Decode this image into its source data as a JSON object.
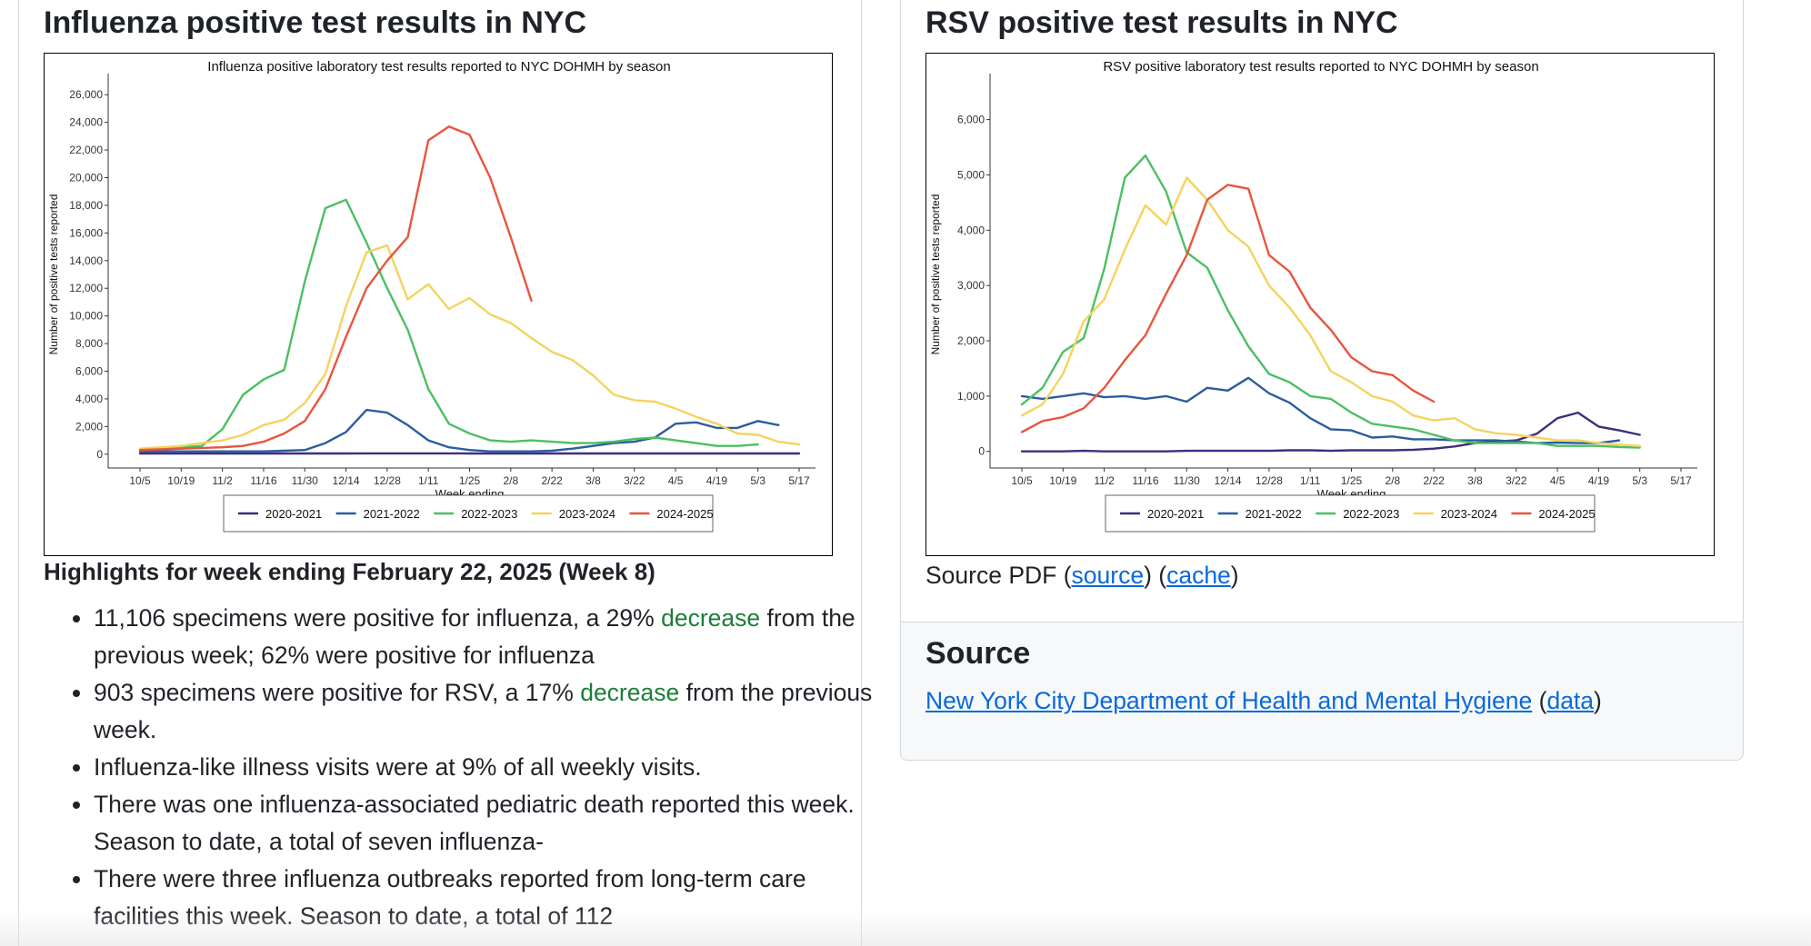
{
  "left": {
    "heading": "Influenza positive test results in NYC",
    "highlights_title": "Highlights for week ending February 22, 2025 (Week 8)",
    "bullets": [
      {
        "before": "11,106 specimens were positive for influenza, a 29% ",
        "green": "decrease",
        "after": " from the previous week; 62% were positive for influenza"
      },
      {
        "before": "903 specimens were positive for RSV, a 17% ",
        "green": "decrease",
        "after": " from the previous week."
      },
      {
        "before": "Influenza-like illness visits were at 9% of all weekly visits.",
        "green": "",
        "after": ""
      },
      {
        "before": "There was one influenza-associated pediatric death reported this week. Season to date, a total of seven influenza-",
        "green": "",
        "after": ""
      },
      {
        "before": "There were three influenza outbreaks reported from long-term care facilities this week. Season to date, a total of 112",
        "green": "",
        "after": ""
      }
    ]
  },
  "right": {
    "heading": "RSV positive test results in NYC",
    "source_pdf_text": "Source PDF (",
    "source_link": "source",
    "mid": ") (",
    "cache_link": "cache",
    "end": ")",
    "source_section_title": "Source",
    "org_link": "New York City Department of Health and Mental Hygiene",
    "org_open": " (",
    "data_link": "data",
    "org_close": ")"
  },
  "colors": {
    "2020-2021": "#3f2d7c",
    "2021-2022": "#2a5d9f",
    "2022-2023": "#4cbf63",
    "2023-2024": "#f4d35e",
    "2024-2025": "#e8553e"
  },
  "chart_data": [
    {
      "type": "line",
      "title": "Influenza positive laboratory test results reported to NYC DOHMH by season",
      "xlabel": "Week ending",
      "ylabel": "Number of positive tests reported",
      "x_ticks": [
        "10/5",
        "10/19",
        "11/2",
        "11/16",
        "11/30",
        "12/14",
        "12/28",
        "1/11",
        "1/25",
        "2/8",
        "2/22",
        "3/8",
        "3/22",
        "4/5",
        "4/19",
        "5/3",
        "5/17"
      ],
      "y_ticks": [
        0,
        2000,
        4000,
        6000,
        8000,
        10000,
        12000,
        14000,
        16000,
        18000,
        20000,
        22000,
        24000,
        26000
      ],
      "y_tick_labels": [
        "0",
        "2,000",
        "4,000",
        "6,000",
        "8,000",
        "10,000",
        "12,000",
        "14,000",
        "16,000",
        "18,000",
        "20,000",
        "22,000",
        "24,000",
        "26,000"
      ],
      "ylim": [
        -1000,
        27000
      ],
      "n_weeks": 33,
      "legend": "bottom",
      "series": [
        {
          "name": "2020-2021",
          "values": [
            50,
            50,
            50,
            50,
            50,
            50,
            50,
            50,
            50,
            50,
            50,
            60,
            60,
            60,
            60,
            60,
            50,
            50,
            50,
            50,
            50,
            50,
            50,
            50,
            50,
            50,
            50,
            50,
            50,
            50,
            50,
            50,
            50
          ]
        },
        {
          "name": "2021-2022",
          "values": [
            200,
            200,
            200,
            200,
            200,
            200,
            200,
            250,
            300,
            800,
            1600,
            3200,
            3000,
            2100,
            1000,
            500,
            300,
            200,
            200,
            200,
            250,
            400,
            600,
            800,
            900,
            1200,
            2200,
            2300,
            1900,
            1900,
            2400,
            2100,
            null
          ]
        },
        {
          "name": "2022-2023",
          "values": [
            300,
            400,
            500,
            600,
            1800,
            4300,
            5400,
            6100,
            12500,
            17800,
            18400,
            15300,
            12000,
            9000,
            4700,
            2200,
            1500,
            1000,
            900,
            1000,
            900,
            800,
            800,
            900,
            1100,
            1200,
            1000,
            800,
            600,
            600,
            700,
            null,
            null
          ]
        },
        {
          "name": "2023-2024",
          "values": [
            400,
            500,
            600,
            800,
            1000,
            1400,
            2100,
            2500,
            3700,
            5800,
            10700,
            14600,
            15100,
            11200,
            12300,
            10500,
            11300,
            10100,
            9500,
            8400,
            7400,
            6800,
            5700,
            4300,
            3900,
            3800,
            3300,
            2700,
            2200,
            1500,
            1400,
            900,
            700
          ]
        },
        {
          "name": "2024-2025",
          "values": [
            300,
            350,
            400,
            450,
            500,
            600,
            900,
            1500,
            2400,
            4700,
            8500,
            12000,
            14000,
            15700,
            22700,
            23700,
            23100,
            20000,
            15700,
            11100
          ]
        }
      ]
    },
    {
      "type": "line",
      "title": "RSV positive laboratory test results reported to NYC DOHMH by season",
      "xlabel": "Week ending",
      "ylabel": "Number of positive tests reported",
      "x_ticks": [
        "10/5",
        "10/19",
        "11/2",
        "11/16",
        "11/30",
        "12/14",
        "12/28",
        "1/11",
        "1/25",
        "2/8",
        "2/22",
        "3/8",
        "3/22",
        "4/5",
        "4/19",
        "5/3",
        "5/17"
      ],
      "y_ticks": [
        0,
        1000,
        2000,
        3000,
        4000,
        5000,
        6000
      ],
      "y_tick_labels": [
        "0",
        "1,000",
        "2,000",
        "3,000",
        "4,000",
        "5,000",
        "6,000"
      ],
      "ylim": [
        -300,
        6700
      ],
      "n_weeks": 33,
      "legend": "bottom",
      "series": [
        {
          "name": "2020-2021",
          "values": [
            0,
            0,
            0,
            10,
            0,
            0,
            0,
            0,
            10,
            10,
            10,
            10,
            10,
            20,
            20,
            10,
            20,
            20,
            20,
            30,
            50,
            90,
            150,
            180,
            200,
            320,
            600,
            700,
            450,
            380,
            300
          ]
        },
        {
          "name": "2021-2022",
          "values": [
            1000,
            950,
            1000,
            1050,
            980,
            1000,
            950,
            1000,
            900,
            1150,
            1100,
            1330,
            1050,
            880,
            600,
            400,
            380,
            250,
            270,
            220,
            220,
            200,
            200,
            200,
            180,
            150,
            160,
            150,
            150,
            200
          ]
        },
        {
          "name": "2022-2023",
          "values": [
            850,
            1150,
            1800,
            2050,
            3300,
            4950,
            5350,
            4700,
            3600,
            3320,
            2550,
            1900,
            1400,
            1250,
            1000,
            950,
            700,
            500,
            450,
            400,
            300,
            200,
            150,
            150,
            150,
            150,
            100,
            100,
            100,
            80,
            70
          ]
        },
        {
          "name": "2023-2024",
          "values": [
            650,
            850,
            1400,
            2350,
            2750,
            3650,
            4450,
            4100,
            4950,
            4550,
            4000,
            3700,
            3000,
            2600,
            2100,
            1450,
            1250,
            1000,
            900,
            650,
            560,
            600,
            400,
            330,
            300,
            250,
            200,
            200,
            150,
            120,
            100
          ]
        },
        {
          "name": "2024-2025",
          "values": [
            350,
            550,
            620,
            780,
            1150,
            1650,
            2100,
            2850,
            3550,
            4550,
            4820,
            4750,
            3550,
            3250,
            2600,
            2200,
            1700,
            1450,
            1380,
            1100,
            900
          ]
        }
      ]
    }
  ]
}
